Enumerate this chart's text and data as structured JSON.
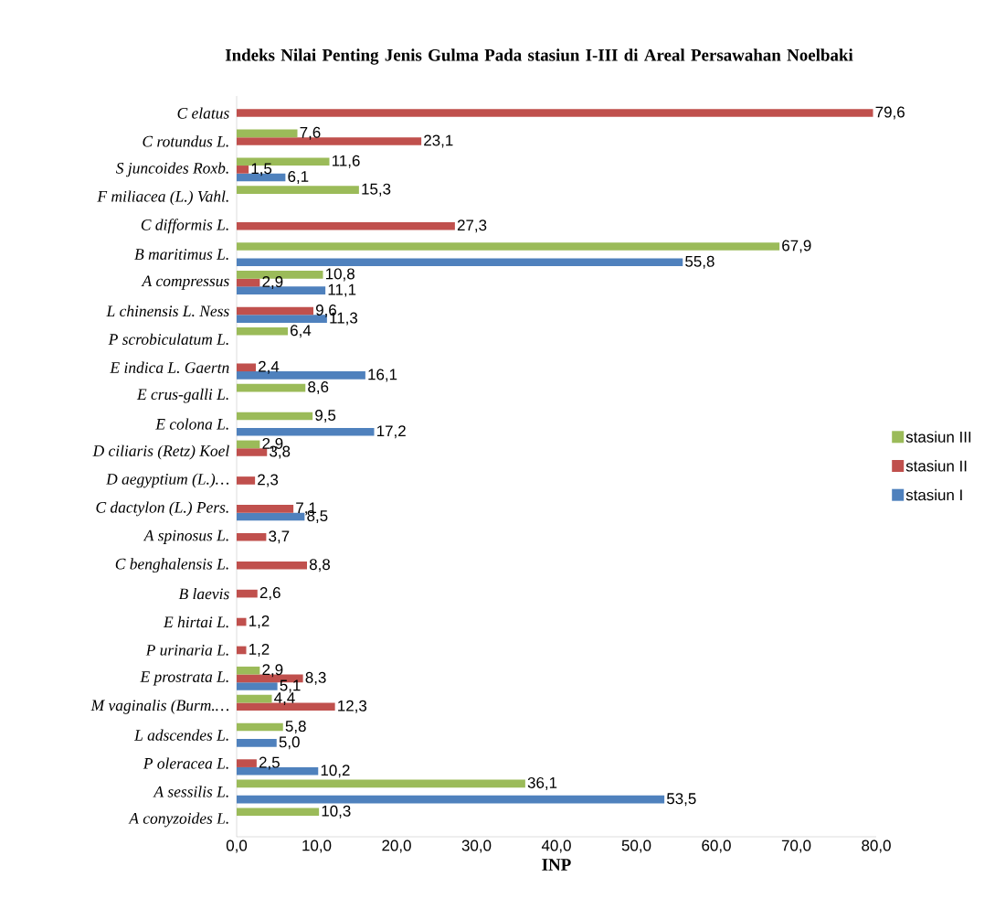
{
  "chart_data": {
    "type": "bar",
    "orientation": "horizontal",
    "title": "Indeks Nilai Penting Jenis Gulma Pada stasiun I-III di Areal Persawahan Noelbaki",
    "xlabel": "INP",
    "categories": [
      "C elatus",
      "C rotundus L.",
      "S juncoides Roxb.",
      "F miliacea (L.) Vahl.",
      "C difformis L.",
      "B maritimus L.",
      "A compressus",
      "L chinensis L. Ness",
      "P scrobiculatum L.",
      "E indica L. Gaertn",
      "E crus-galli L.",
      "E colona L.",
      "D ciliaris (Retz) Koel",
      "D aegyptium (L.)…",
      "C dactylon (L.) Pers.",
      "A spinosus L.",
      "C benghalensis L.",
      "B laevis",
      "E hirtai L.",
      "P urinaria L.",
      "E prostrata L.",
      "M vaginalis (Burm.…",
      "L adscendes L.",
      "P oleracea L.",
      "A sessilis L.",
      "A conyzoides L."
    ],
    "series": [
      {
        "name": "stasiun I",
        "color": "#4f81bd",
        "values": [
          null,
          null,
          6.1,
          null,
          null,
          55.8,
          11.1,
          11.3,
          null,
          16.1,
          null,
          17.2,
          null,
          null,
          8.5,
          null,
          null,
          null,
          null,
          null,
          5.1,
          null,
          5.0,
          10.2,
          53.5,
          null
        ],
        "value_labels": [
          null,
          null,
          "6,1",
          null,
          null,
          "55,8",
          "11,1",
          "11,3",
          null,
          "16,1",
          null,
          "17,2",
          null,
          null,
          "8,5",
          null,
          null,
          null,
          null,
          null,
          "5,1",
          null,
          "5,0",
          "10,2",
          "53,5",
          null
        ]
      },
      {
        "name": "stasiun II",
        "color": "#c0504d",
        "values": [
          79.6,
          23.1,
          1.5,
          null,
          27.3,
          null,
          2.9,
          9.6,
          null,
          2.4,
          null,
          null,
          3.8,
          2.3,
          7.1,
          3.7,
          8.8,
          2.6,
          1.2,
          1.2,
          8.3,
          12.3,
          null,
          2.5,
          null,
          null
        ],
        "value_labels": [
          "79,6",
          "23,1",
          "1,5",
          null,
          "27,3",
          null,
          "2,9",
          "9,6",
          null,
          "2,4",
          null,
          null,
          "3,8",
          "2,3",
          "7,1",
          "3,7",
          "8,8",
          "2,6",
          "1,2",
          "1,2",
          "8,3",
          "12,3",
          null,
          "2,5",
          null,
          null
        ]
      },
      {
        "name": "stasiun III",
        "color": "#9bbb59",
        "values": [
          null,
          7.6,
          11.6,
          15.3,
          null,
          67.9,
          10.8,
          null,
          6.4,
          null,
          8.6,
          9.5,
          2.9,
          null,
          null,
          null,
          null,
          null,
          null,
          null,
          2.9,
          4.4,
          5.8,
          null,
          36.1,
          10.3
        ],
        "value_labels": [
          null,
          "7,6",
          "11,6",
          "15,3",
          null,
          "67,9",
          "10,8",
          null,
          "6,4",
          null,
          "8,6",
          "9,5",
          "2,9",
          null,
          null,
          null,
          null,
          null,
          null,
          null,
          "2,9",
          "4,4",
          "5,8",
          null,
          "36,1",
          "10,3"
        ]
      }
    ],
    "xlim": [
      0,
      80
    ],
    "xticks": [
      {
        "value": 0,
        "label": "0,0"
      },
      {
        "value": 10,
        "label": "10,0"
      },
      {
        "value": 20,
        "label": "20,0"
      },
      {
        "value": 30,
        "label": "30,0"
      },
      {
        "value": 40,
        "label": "40,0"
      },
      {
        "value": 50,
        "label": "50,0"
      },
      {
        "value": 60,
        "label": "60,0"
      },
      {
        "value": 70,
        "label": "70,0"
      },
      {
        "value": 80,
        "label": "80,0"
      }
    ],
    "legend": "right"
  }
}
